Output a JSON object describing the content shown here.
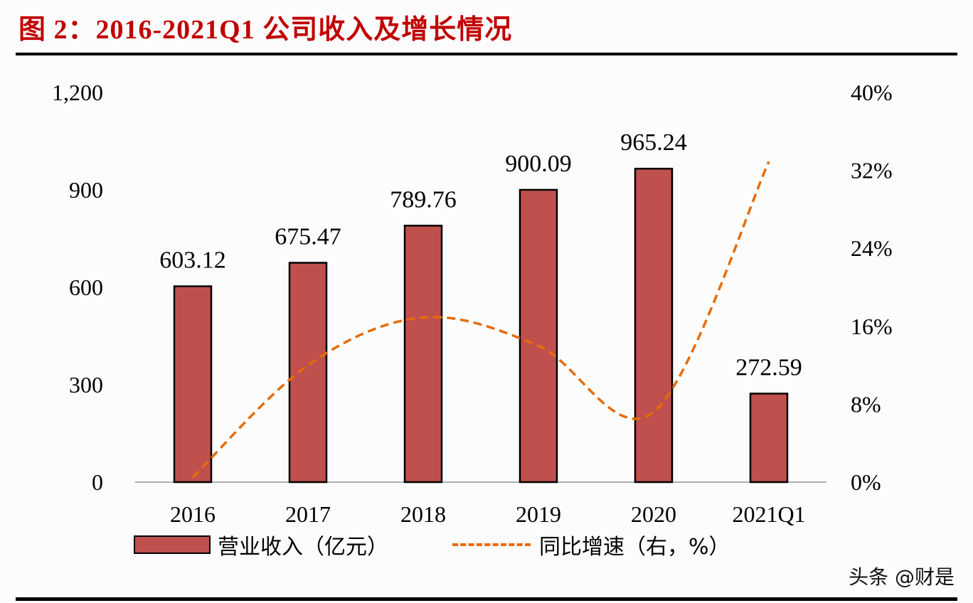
{
  "title": "图 2：2016-2021Q1 公司收入及增长情况",
  "legend": {
    "bar_label": "营业收入（亿元）",
    "line_label": "同比增速（右，%）"
  },
  "watermark": "头条 @财是",
  "colors": {
    "title": "#c00000",
    "bar_fill": "#c0504d",
    "bar_border": "#000000",
    "line": "#e46c0a"
  },
  "chart_data": {
    "type": "bar",
    "title": "图 2：2016-2021Q1 公司收入及增长情况",
    "categories": [
      "2016",
      "2017",
      "2018",
      "2019",
      "2020",
      "2021Q1"
    ],
    "series": [
      {
        "name": "营业收入（亿元）",
        "type": "bar",
        "axis": "left",
        "values": [
          603.12,
          675.47,
          789.76,
          900.09,
          965.24,
          272.59
        ],
        "labels": [
          "603.12",
          "675.47",
          "789.76",
          "900.09",
          "965.24",
          "272.59"
        ]
      },
      {
        "name": "同比增速（右，%）",
        "type": "line",
        "style": "dashed, smoothed",
        "axis": "right",
        "values": [
          0.5,
          12.0,
          16.9,
          14.0,
          7.2,
          32.9
        ]
      }
    ],
    "left_axis": {
      "ticks": [
        "0",
        "300",
        "600",
        "900",
        "1,200"
      ],
      "ylim": [
        0,
        1200
      ]
    },
    "right_axis": {
      "ticks": [
        "0%",
        "8%",
        "16%",
        "24%",
        "32%",
        "40%"
      ],
      "ylim": [
        0,
        40
      ]
    },
    "xlabel": "",
    "ylabel": "",
    "grid": false,
    "legend_position": "bottom"
  }
}
